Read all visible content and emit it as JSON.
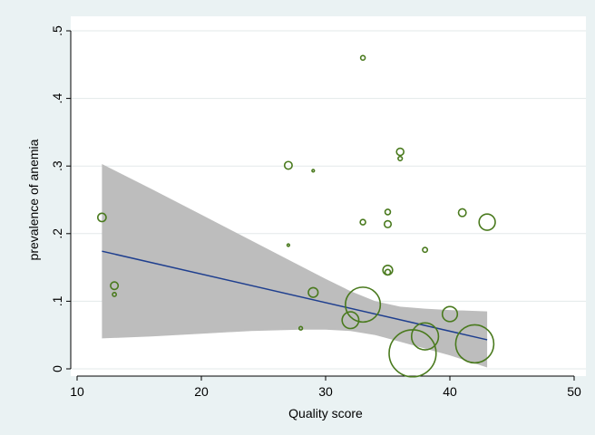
{
  "chart_data": {
    "type": "scatter",
    "title": "",
    "xlabel": "Quality score",
    "ylabel": "prevalence of anemia",
    "xlim": [
      10,
      50
    ],
    "ylim": [
      0,
      0.5
    ],
    "x_ticks": [
      10,
      20,
      30,
      40,
      50
    ],
    "x_tick_labels": [
      "10",
      "20",
      "30",
      "40",
      "50"
    ],
    "y_ticks": [
      0,
      0.1,
      0.2,
      0.3,
      0.4,
      0.5
    ],
    "y_tick_labels": [
      "0",
      ".1",
      ".2",
      ".3",
      ".4",
      ".5"
    ],
    "grid": "horizontal",
    "legend": "none",
    "colors": {
      "background": "#eaf2f3",
      "plot_background": "#ffffff",
      "marker": "#4a7a1e",
      "fit_line": "#1f3f8f",
      "confidence_band": "#bdbdbd",
      "grid": "#e3e9ea"
    },
    "points": [
      {
        "x": 12,
        "y": 0.224,
        "weight": 1.2
      },
      {
        "x": 13,
        "y": 0.123,
        "weight": 1.0
      },
      {
        "x": 13,
        "y": 0.11,
        "weight": 0.25
      },
      {
        "x": 27,
        "y": 0.301,
        "weight": 1.0
      },
      {
        "x": 27,
        "y": 0.183,
        "weight": 0.1
      },
      {
        "x": 28,
        "y": 0.06,
        "weight": 0.2
      },
      {
        "x": 29,
        "y": 0.293,
        "weight": 0.1
      },
      {
        "x": 29,
        "y": 0.113,
        "weight": 1.6
      },
      {
        "x": 32,
        "y": 0.072,
        "weight": 4.8
      },
      {
        "x": 33,
        "y": 0.46,
        "weight": 0.35
      },
      {
        "x": 33,
        "y": 0.217,
        "weight": 0.5
      },
      {
        "x": 33,
        "y": 0.095,
        "weight": 21.0
      },
      {
        "x": 35,
        "y": 0.232,
        "weight": 0.5
      },
      {
        "x": 35,
        "y": 0.214,
        "weight": 0.8
      },
      {
        "x": 35,
        "y": 0.146,
        "weight": 1.6
      },
      {
        "x": 35,
        "y": 0.143,
        "weight": 0.5
      },
      {
        "x": 36,
        "y": 0.321,
        "weight": 0.9
      },
      {
        "x": 36,
        "y": 0.311,
        "weight": 0.3
      },
      {
        "x": 37,
        "y": 0.023,
        "weight": 38.0
      },
      {
        "x": 38,
        "y": 0.176,
        "weight": 0.4
      },
      {
        "x": 38,
        "y": 0.048,
        "weight": 12.5
      },
      {
        "x": 40,
        "y": 0.081,
        "weight": 3.9
      },
      {
        "x": 41,
        "y": 0.231,
        "weight": 1.0
      },
      {
        "x": 42,
        "y": 0.037,
        "weight": 25.0
      },
      {
        "x": 43,
        "y": 0.217,
        "weight": 4.5
      }
    ],
    "fit_line": {
      "x": [
        12,
        43
      ],
      "y": [
        0.174,
        0.043
      ]
    },
    "confidence_band": {
      "x": [
        12,
        16,
        20,
        24,
        28,
        30,
        32,
        34,
        36,
        38,
        40,
        43
      ],
      "lower": [
        0.045,
        0.048,
        0.052,
        0.056,
        0.058,
        0.058,
        0.056,
        0.05,
        0.04,
        0.03,
        0.02,
        0.002
      ],
      "upper": [
        0.303,
        0.266,
        0.228,
        0.19,
        0.152,
        0.133,
        0.115,
        0.1,
        0.092,
        0.089,
        0.087,
        0.085
      ]
    }
  }
}
